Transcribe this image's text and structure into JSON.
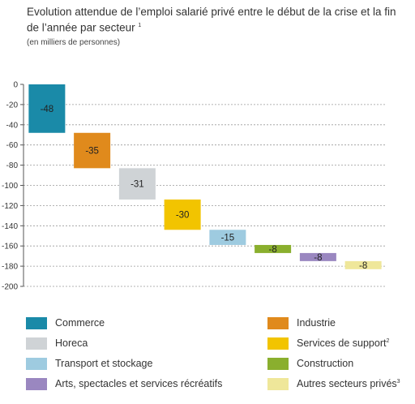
{
  "title": "Evolution attendue de l’emploi salarié privé entre le début de la crise et la fin de l’année par secteur",
  "title_note": "1",
  "subtitle": "(en milliers de personnes)",
  "chart_data": {
    "type": "bar",
    "subtype": "waterfall",
    "yticks": [
      "0",
      "-20",
      "-40",
      "-60",
      "-80",
      "-100",
      "-120",
      "-140",
      "-160",
      "-180",
      "-200"
    ],
    "ylim": [
      -200,
      0
    ],
    "grid": "dashed-horizontal",
    "legend_position": "bottom",
    "categories": [
      "Commerce",
      "Industrie",
      "Horeca",
      "Services de support",
      "Transport et stockage",
      "Construction",
      "Arts, spectacles et services récréatifs",
      "Autres secteurs privés"
    ],
    "values": [
      -48,
      -35,
      -31,
      -30,
      -15,
      -8,
      -8,
      -8
    ],
    "labels": [
      "-48",
      "-35",
      "-31",
      "-30",
      "-15",
      "-8",
      "-8",
      "-8"
    ],
    "colors": [
      "#1a8aa8",
      "#e08a1c",
      "#cfd3d6",
      "#f2c400",
      "#9ecbe0",
      "#8aaf2e",
      "#9a87c0",
      "#efe79a"
    ]
  },
  "legend": [
    {
      "label": "Commerce",
      "note": "",
      "color": "#1a8aa8"
    },
    {
      "label": "Industrie",
      "note": "",
      "color": "#e08a1c"
    },
    {
      "label": "Horeca",
      "note": "",
      "color": "#cfd3d6"
    },
    {
      "label": "Services de support",
      "note": "2",
      "color": "#f2c400"
    },
    {
      "label": "Transport et stockage",
      "note": "",
      "color": "#9ecbe0"
    },
    {
      "label": "Construction",
      "note": "",
      "color": "#8aaf2e"
    },
    {
      "label": "Arts, spectacles et services récréatifs",
      "note": "",
      "color": "#9a87c0"
    },
    {
      "label": "Autres secteurs privés",
      "note": "3",
      "color": "#efe79a"
    }
  ]
}
